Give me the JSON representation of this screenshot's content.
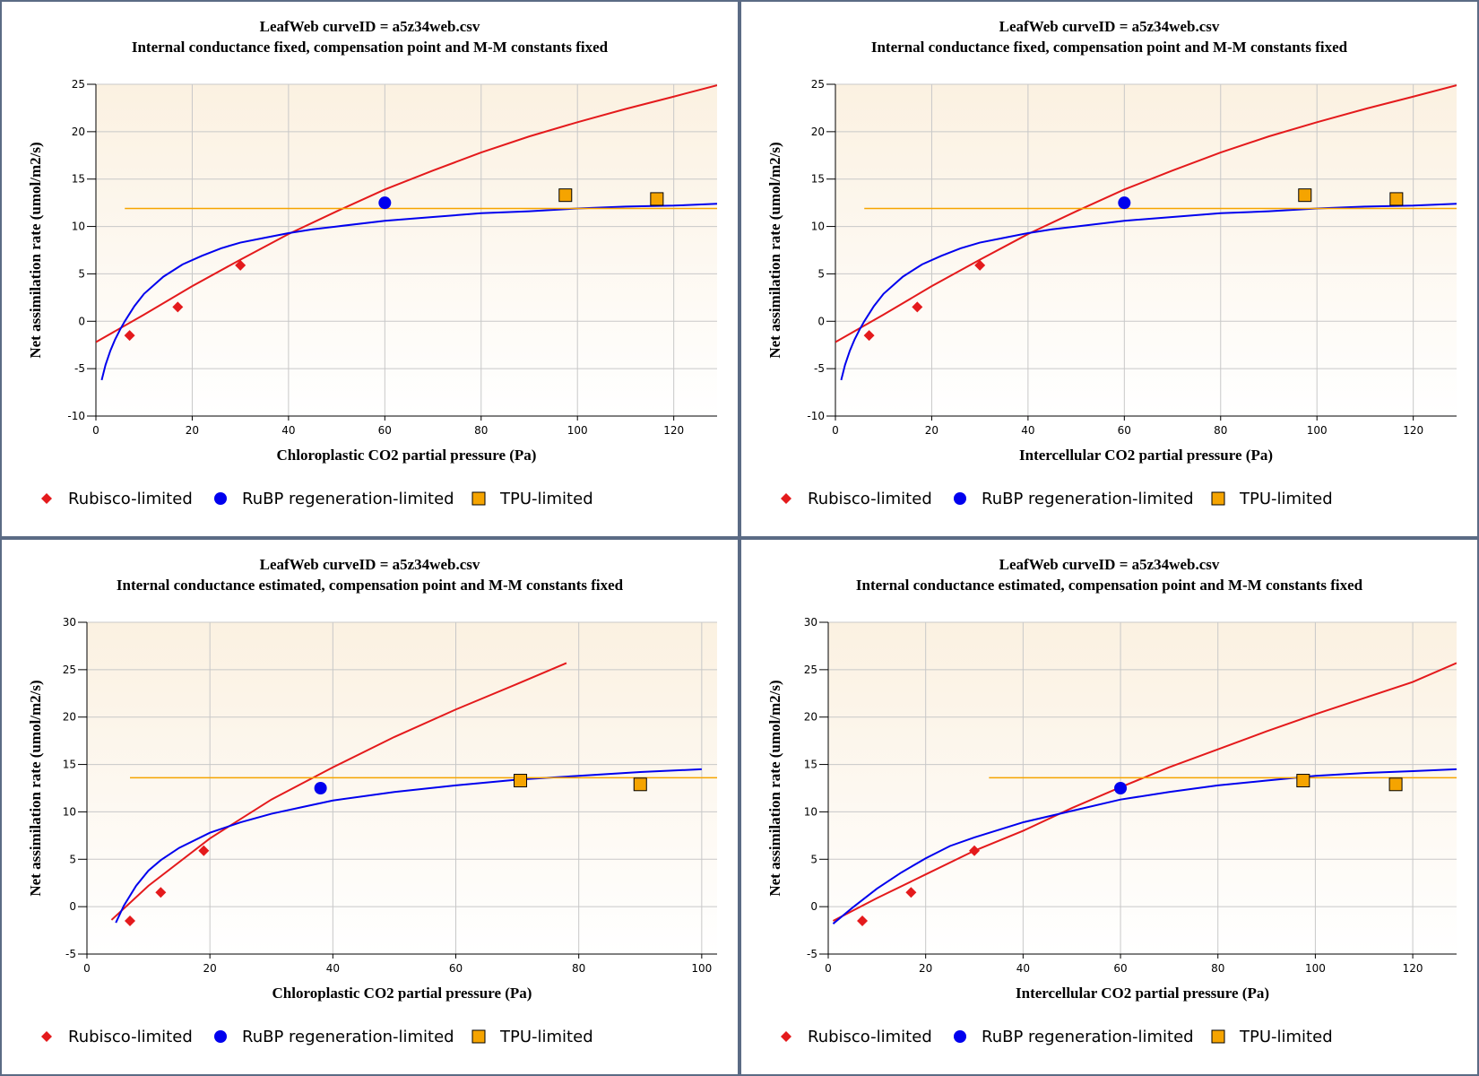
{
  "colors": {
    "rubisco": "#e41a1c",
    "rubp": "#0000ee",
    "tpu": "#f5a400",
    "plot_bg_top": "#fbf1e1",
    "plot_bg_bottom": "#ffffff",
    "panel_border": "#5b6b85"
  },
  "legend_items": [
    {
      "label": "Rubisco-limited",
      "marker": "diamond",
      "color_key": "rubisco"
    },
    {
      "label": "RuBP regeneration-limited",
      "marker": "circle",
      "color_key": "rubp"
    },
    {
      "label": "TPU-limited",
      "marker": "square",
      "color_key": "tpu"
    }
  ],
  "chart_data": [
    {
      "type": "line",
      "title": "LeafWeb curveID = a5z34web.csv",
      "subtitle": "Internal conductance fixed, compensation point and M-M constants fixed",
      "xlabel": "Chloroplastic CO2 partial pressure (Pa)",
      "ylabel": "Net assimilation rate (umol/m2/s)",
      "xlim": [
        0,
        129
      ],
      "ylim": [
        -10,
        25
      ],
      "xticks": [
        0,
        20,
        40,
        60,
        80,
        100,
        120
      ],
      "yticks": [
        -10,
        -5,
        0,
        5,
        10,
        15,
        20,
        25
      ],
      "grid": true,
      "series": [
        {
          "type": "line",
          "color_key": "rubisco",
          "x": [
            0,
            10,
            20,
            30,
            40,
            50,
            60,
            70,
            80,
            90,
            100,
            110,
            120,
            129
          ],
          "y": [
            -2.2,
            0.7,
            3.7,
            6.5,
            9.2,
            11.6,
            13.9,
            15.9,
            17.8,
            19.5,
            21.0,
            22.4,
            23.7,
            24.9
          ]
        },
        {
          "type": "line",
          "color_key": "rubp",
          "x": [
            1.2,
            2,
            3,
            4,
            5,
            6,
            8,
            10,
            14,
            18,
            22,
            26,
            30,
            35,
            40,
            45,
            50,
            60,
            70,
            80,
            90,
            100,
            110,
            120,
            129
          ],
          "y": [
            -6.2,
            -4.6,
            -3.1,
            -1.9,
            -0.9,
            0.0,
            1.6,
            2.9,
            4.7,
            6.0,
            6.9,
            7.7,
            8.3,
            8.8,
            9.3,
            9.7,
            10.0,
            10.6,
            11.0,
            11.4,
            11.6,
            11.9,
            12.1,
            12.2,
            12.4
          ]
        },
        {
          "type": "line",
          "color_key": "tpu",
          "x": [
            6,
            129
          ],
          "y": [
            11.9,
            11.9
          ]
        },
        {
          "type": "scatter",
          "marker": "diamond",
          "color_key": "rubisco",
          "x": [
            7,
            17,
            30
          ],
          "y": [
            -1.5,
            1.5,
            5.9
          ]
        },
        {
          "type": "scatter",
          "marker": "circle",
          "color_key": "rubp",
          "x": [
            60
          ],
          "y": [
            12.5
          ]
        },
        {
          "type": "scatter",
          "marker": "square",
          "color_key": "tpu",
          "x": [
            97.5,
            116.5
          ],
          "y": [
            13.3,
            12.9
          ]
        }
      ]
    },
    {
      "type": "line",
      "title": "LeafWeb curveID = a5z34web.csv",
      "subtitle": "Internal conductance fixed, compensation point and M-M constants fixed",
      "xlabel": "Intercellular CO2 partial pressure (Pa)",
      "ylabel": "Net assimilation rate (umol/m2/s)",
      "xlim": [
        0,
        129
      ],
      "ylim": [
        -10,
        25
      ],
      "xticks": [
        0,
        20,
        40,
        60,
        80,
        100,
        120
      ],
      "yticks": [
        -10,
        -5,
        0,
        5,
        10,
        15,
        20,
        25
      ],
      "grid": true,
      "series": [
        {
          "type": "line",
          "color_key": "rubisco",
          "x": [
            0,
            10,
            20,
            30,
            40,
            50,
            60,
            70,
            80,
            90,
            100,
            110,
            120,
            129
          ],
          "y": [
            -2.2,
            0.7,
            3.7,
            6.5,
            9.2,
            11.6,
            13.9,
            15.9,
            17.8,
            19.5,
            21.0,
            22.4,
            23.7,
            24.9
          ]
        },
        {
          "type": "line",
          "color_key": "rubp",
          "x": [
            1.2,
            2,
            3,
            4,
            5,
            6,
            8,
            10,
            14,
            18,
            22,
            26,
            30,
            35,
            40,
            45,
            50,
            60,
            70,
            80,
            90,
            100,
            110,
            120,
            129
          ],
          "y": [
            -6.2,
            -4.6,
            -3.1,
            -1.9,
            -0.9,
            0.0,
            1.6,
            2.9,
            4.7,
            6.0,
            6.9,
            7.7,
            8.3,
            8.8,
            9.3,
            9.7,
            10.0,
            10.6,
            11.0,
            11.4,
            11.6,
            11.9,
            12.1,
            12.2,
            12.4
          ]
        },
        {
          "type": "line",
          "color_key": "tpu",
          "x": [
            6,
            129
          ],
          "y": [
            11.9,
            11.9
          ]
        },
        {
          "type": "scatter",
          "marker": "diamond",
          "color_key": "rubisco",
          "x": [
            7,
            17,
            30
          ],
          "y": [
            -1.5,
            1.5,
            5.9
          ]
        },
        {
          "type": "scatter",
          "marker": "circle",
          "color_key": "rubp",
          "x": [
            60
          ],
          "y": [
            12.5
          ]
        },
        {
          "type": "scatter",
          "marker": "square",
          "color_key": "tpu",
          "x": [
            97.5,
            116.5
          ],
          "y": [
            13.3,
            12.9
          ]
        }
      ]
    },
    {
      "type": "line",
      "title": "LeafWeb curveID = a5z34web.csv",
      "subtitle": "Internal conductance estimated, compensation point and M-M constants fixed",
      "xlabel": "Chloroplastic CO2 partial pressure (Pa)",
      "ylabel": "Net assimilation rate (umol/m2/s)",
      "xlim": [
        0,
        102.5
      ],
      "ylim": [
        -5,
        30
      ],
      "xticks": [
        0,
        20,
        40,
        60,
        80,
        100
      ],
      "yticks": [
        -5,
        0,
        5,
        10,
        15,
        20,
        25,
        30
      ],
      "grid": true,
      "series": [
        {
          "type": "line",
          "color_key": "rubisco",
          "x": [
            4,
            10,
            20,
            30,
            40,
            50,
            60,
            70,
            78
          ],
          "y": [
            -1.4,
            2.2,
            7.2,
            11.3,
            14.7,
            17.9,
            20.8,
            23.5,
            25.7
          ]
        },
        {
          "type": "line",
          "color_key": "rubp",
          "x": [
            4.7,
            6,
            8,
            10,
            12,
            15,
            20,
            25,
            30,
            35,
            40,
            50,
            60,
            70,
            80,
            90,
            100
          ],
          "y": [
            -1.7,
            0.1,
            2.2,
            3.8,
            4.9,
            6.2,
            7.8,
            8.9,
            9.8,
            10.5,
            11.2,
            12.1,
            12.8,
            13.4,
            13.8,
            14.2,
            14.5
          ]
        },
        {
          "type": "line",
          "color_key": "tpu",
          "x": [
            7,
            102.5
          ],
          "y": [
            13.6,
            13.6
          ]
        },
        {
          "type": "scatter",
          "marker": "diamond",
          "color_key": "rubisco",
          "x": [
            7,
            12,
            19
          ],
          "y": [
            -1.5,
            1.5,
            5.9
          ]
        },
        {
          "type": "scatter",
          "marker": "circle",
          "color_key": "rubp",
          "x": [
            38
          ],
          "y": [
            12.5
          ]
        },
        {
          "type": "scatter",
          "marker": "square",
          "color_key": "tpu",
          "x": [
            70.5,
            90
          ],
          "y": [
            13.3,
            12.9
          ]
        }
      ]
    },
    {
      "type": "line",
      "title": "LeafWeb curveID = a5z34web.csv",
      "subtitle": "Internal conductance estimated, compensation point and M-M constants fixed",
      "xlabel": "Intercellular CO2 partial pressure (Pa)",
      "ylabel": "Net assimilation rate (umol/m2/s)",
      "xlim": [
        0,
        129
      ],
      "ylim": [
        -5,
        30
      ],
      "xticks": [
        0,
        20,
        40,
        60,
        80,
        100,
        120
      ],
      "yticks": [
        -5,
        0,
        5,
        10,
        15,
        20,
        25,
        30
      ],
      "grid": true,
      "series": [
        {
          "type": "line",
          "color_key": "rubisco",
          "x": [
            1,
            10,
            20,
            30,
            40,
            50,
            60,
            70,
            80,
            90,
            100,
            110,
            120,
            129
          ],
          "y": [
            -1.5,
            0.9,
            3.4,
            5.9,
            8.0,
            10.4,
            12.6,
            14.7,
            16.6,
            18.5,
            20.3,
            22.0,
            23.7,
            25.7
          ]
        },
        {
          "type": "line",
          "color_key": "rubp",
          "x": [
            1,
            5,
            10,
            15,
            20,
            25,
            30,
            40,
            50,
            60,
            70,
            80,
            90,
            100,
            110,
            120,
            129
          ],
          "y": [
            -1.8,
            -0.1,
            1.9,
            3.6,
            5.1,
            6.4,
            7.3,
            8.9,
            10.1,
            11.3,
            12.1,
            12.8,
            13.3,
            13.8,
            14.1,
            14.3,
            14.5
          ]
        },
        {
          "type": "line",
          "color_key": "tpu",
          "x": [
            33,
            129
          ],
          "y": [
            13.6,
            13.6
          ]
        },
        {
          "type": "scatter",
          "marker": "diamond",
          "color_key": "rubisco",
          "x": [
            7,
            17,
            30
          ],
          "y": [
            -1.5,
            1.5,
            5.9
          ]
        },
        {
          "type": "scatter",
          "marker": "circle",
          "color_key": "rubp",
          "x": [
            60
          ],
          "y": [
            12.5
          ]
        },
        {
          "type": "scatter",
          "marker": "square",
          "color_key": "tpu",
          "x": [
            97.5,
            116.5
          ],
          "y": [
            13.3,
            12.9
          ]
        }
      ]
    }
  ]
}
